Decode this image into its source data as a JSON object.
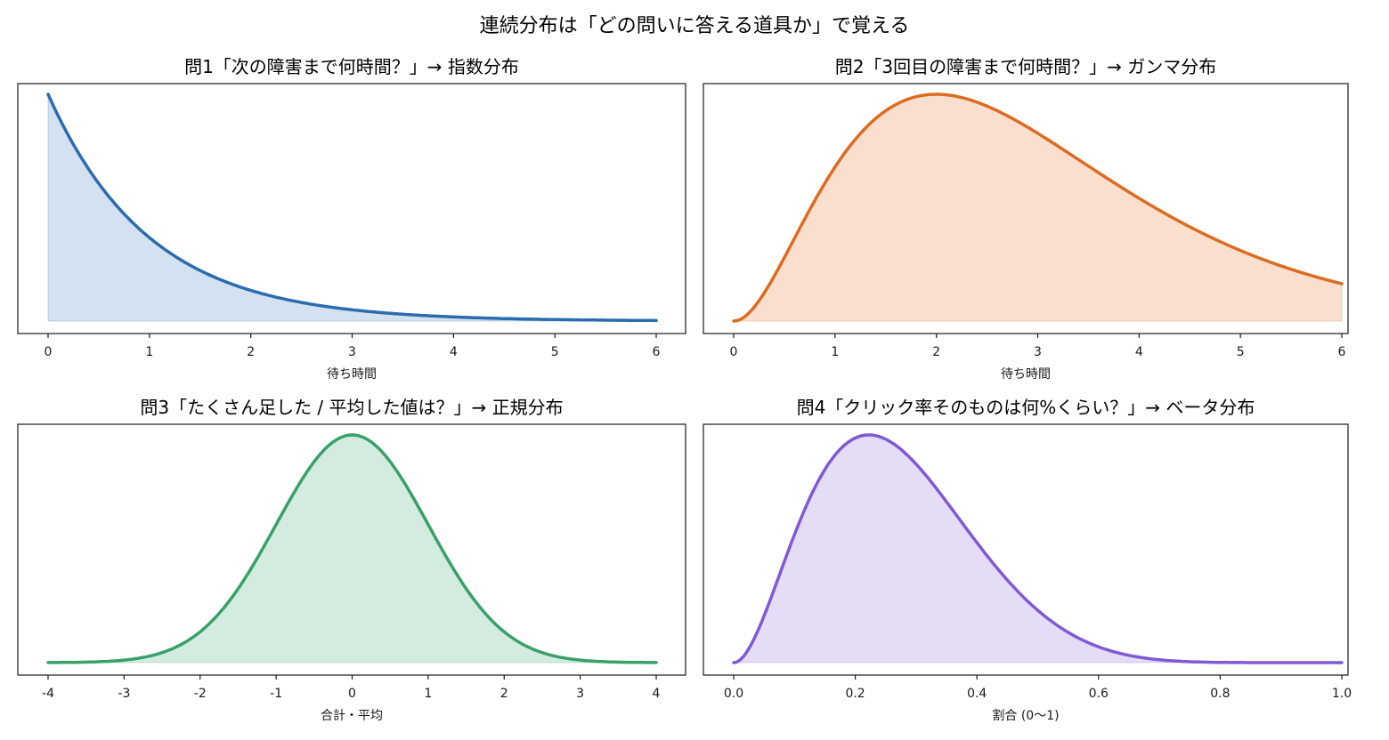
{
  "figure": {
    "title": "連続分布は「どの問いに答える道具か」で覚える"
  },
  "chart_data": [
    {
      "type": "area",
      "distribution": "exponential",
      "params": {
        "lambda": 1
      },
      "title": "問1「次の障害まで何時間？」→ 指数分布",
      "xlabel": "待ち時間",
      "ylabel": "",
      "xlim": [
        0,
        6
      ],
      "xticks": [
        "0",
        "1",
        "2",
        "3",
        "4",
        "5",
        "6"
      ],
      "yticks_visible": false,
      "color": "#2b6cb0",
      "fill": "#d3e1f0",
      "x": [
        0,
        0.5,
        1,
        1.5,
        2,
        2.5,
        3,
        3.5,
        4,
        4.5,
        5,
        5.5,
        6
      ],
      "y": [
        1.0,
        0.607,
        0.368,
        0.223,
        0.135,
        0.082,
        0.05,
        0.03,
        0.018,
        0.011,
        0.0067,
        0.0041,
        0.0025
      ]
    },
    {
      "type": "area",
      "distribution": "gamma",
      "params": {
        "shape": 3,
        "scale": 1
      },
      "title": "問2「3回目の障害まで何時間？」→ ガンマ分布",
      "xlabel": "待ち時間",
      "ylabel": "",
      "xlim": [
        0,
        6
      ],
      "xticks": [
        "0",
        "1",
        "2",
        "3",
        "4",
        "5",
        "6"
      ],
      "yticks_visible": false,
      "color": "#dd6b20",
      "fill": "#fadfcf",
      "x": [
        0,
        0.5,
        1,
        1.5,
        2,
        2.5,
        3,
        3.5,
        4,
        4.5,
        5,
        5.5,
        6
      ],
      "y": [
        0,
        0.076,
        0.184,
        0.251,
        0.271,
        0.257,
        0.224,
        0.185,
        0.147,
        0.112,
        0.084,
        0.062,
        0.045
      ]
    },
    {
      "type": "area",
      "distribution": "normal",
      "params": {
        "mean": 0,
        "sd": 1
      },
      "title": "問3「たくさん足した / 平均した値は？」→ 正規分布",
      "xlabel": "合計・平均",
      "ylabel": "",
      "xlim": [
        -4,
        4
      ],
      "xticks": [
        "-4",
        "-3",
        "-2",
        "-1",
        "0",
        "1",
        "2",
        "3",
        "4"
      ],
      "yticks_visible": false,
      "color": "#38a169",
      "fill": "#d4ecdf",
      "x": [
        -4,
        -3,
        -2,
        -1.5,
        -1,
        -0.5,
        0,
        0.5,
        1,
        1.5,
        2,
        3,
        4
      ],
      "y": [
        0.0001,
        0.0044,
        0.054,
        0.13,
        0.242,
        0.352,
        0.399,
        0.352,
        0.242,
        0.13,
        0.054,
        0.0044,
        0.0001
      ]
    },
    {
      "type": "area",
      "distribution": "beta",
      "params": {
        "alpha": 3,
        "beta": 8
      },
      "title": "問4「クリック率そのものは何%くらい？」→ ベータ分布",
      "xlabel": "割合 (0〜1)",
      "ylabel": "",
      "xlim": [
        0,
        1
      ],
      "xticks": [
        "0.0",
        "0.2",
        "0.4",
        "0.6",
        "0.8",
        "1.0"
      ],
      "yticks_visible": false,
      "color": "#805ad5",
      "fill": "#e5dcf6",
      "x": [
        0,
        0.1,
        0.2,
        0.22,
        0.3,
        0.4,
        0.5,
        0.6,
        0.7,
        0.8,
        1.0
      ],
      "y": [
        0,
        2.15,
        3.02,
        3.03,
        2.47,
        1.32,
        0.47,
        0.1,
        0.01,
        0.0,
        0
      ]
    }
  ]
}
